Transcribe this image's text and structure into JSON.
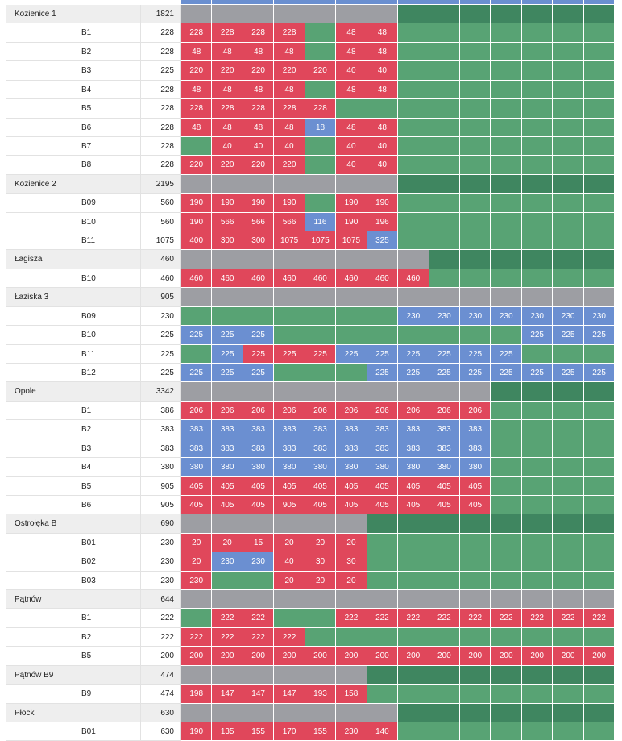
{
  "rows": [
    {
      "name": "Kozienice 1",
      "value": 1821,
      "colors": "SSSSSSSDDDDDDD"
    },
    {
      "unit": "B1",
      "value": 228,
      "colors": "RRRRGRRGGGGGGG",
      "cells": [
        228,
        228,
        228,
        228,
        null,
        48,
        48
      ]
    },
    {
      "unit": "B2",
      "value": 228,
      "colors": "RRRRGRRGGGGGGG",
      "cells": [
        48,
        48,
        48,
        48,
        null,
        48,
        48
      ]
    },
    {
      "unit": "B3",
      "value": 225,
      "colors": "RRRRRRRGGGGGGG",
      "cells": [
        220,
        220,
        220,
        220,
        220,
        40,
        40
      ]
    },
    {
      "unit": "B4",
      "value": 228,
      "colors": "RRRRGRRGGGGGGG",
      "cells": [
        48,
        48,
        48,
        48,
        null,
        48,
        48
      ]
    },
    {
      "unit": "B5",
      "value": 228,
      "colors": "RRRRRGGGGGGGGG",
      "cells": [
        228,
        228,
        228,
        228,
        228
      ]
    },
    {
      "unit": "B6",
      "value": 228,
      "colors": "RRRRBRRGGGGGGG",
      "cells": [
        48,
        48,
        48,
        48,
        18,
        48,
        48
      ]
    },
    {
      "unit": "B7",
      "value": 228,
      "colors": "GRRRGRRGGGGGGG",
      "cells": [
        null,
        40,
        40,
        40,
        null,
        40,
        40
      ]
    },
    {
      "unit": "B8",
      "value": 228,
      "colors": "RRRRGRRGGGGGGG",
      "cells": [
        220,
        220,
        220,
        220,
        null,
        40,
        40
      ]
    },
    {
      "name": "Kozienice 2",
      "value": 2195,
      "colors": "SSSSSSSDDDDDDD"
    },
    {
      "unit": "B09",
      "value": 560,
      "colors": "RRRRGRRGGGGGGG",
      "cells": [
        190,
        190,
        190,
        190,
        null,
        190,
        190
      ]
    },
    {
      "unit": "B10",
      "value": 560,
      "colors": "RRRRBRRGGGGGGG",
      "cells": [
        190,
        566,
        566,
        566,
        116,
        190,
        196
      ]
    },
    {
      "unit": "B11",
      "value": 1075,
      "colors": "RRRRRRBGGGGGGG",
      "cells": [
        400,
        300,
        300,
        1075,
        1075,
        1075,
        325
      ]
    },
    {
      "name": "Łagisza",
      "value": 460,
      "colors": "SSSSSSSSDDDDDD"
    },
    {
      "unit": "B10",
      "value": 460,
      "colors": "RRRRRRRRGGGGGG",
      "cells": [
        460,
        460,
        460,
        460,
        460,
        460,
        460,
        460
      ]
    },
    {
      "name": "Łaziska 3",
      "value": 905,
      "colors": "SSSSSSSSSSSSSS"
    },
    {
      "unit": "B09",
      "value": 230,
      "colors": "GGGGGGGBBBBBBB",
      "cells": [
        null,
        null,
        null,
        null,
        null,
        null,
        null,
        230,
        230,
        230,
        230,
        230,
        230,
        230
      ]
    },
    {
      "unit": "B10",
      "value": 225,
      "colors": "BBBGGGGGGGGBBB",
      "cells": [
        225,
        225,
        225,
        null,
        null,
        null,
        null,
        null,
        null,
        null,
        null,
        225,
        225,
        225
      ]
    },
    {
      "unit": "B11",
      "value": 225,
      "colors": "GBRRRBBBBBBGGG",
      "cells": [
        null,
        225,
        225,
        225,
        225,
        225,
        225,
        225,
        225,
        225,
        225
      ]
    },
    {
      "unit": "B12",
      "value": 225,
      "colors": "BBBGGGBBBBBBBB",
      "cells": [
        225,
        225,
        225,
        null,
        null,
        null,
        225,
        225,
        225,
        225,
        225,
        225,
        225,
        225
      ]
    },
    {
      "name": "Opole",
      "value": 3342,
      "colors": "SSSSSSSSSSDDDD"
    },
    {
      "unit": "B1",
      "value": 386,
      "colors": "RRRRRRRRRRGGGG",
      "cells": [
        206,
        206,
        206,
        206,
        206,
        206,
        206,
        206,
        206,
        206
      ]
    },
    {
      "unit": "B2",
      "value": 383,
      "colors": "BBBBBBBBBBGGGG",
      "cells": [
        383,
        383,
        383,
        383,
        383,
        383,
        383,
        383,
        383,
        383
      ]
    },
    {
      "unit": "B3",
      "value": 383,
      "colors": "BBBBBBBBBBGGGG",
      "cells": [
        383,
        383,
        383,
        383,
        383,
        383,
        383,
        383,
        383,
        383
      ]
    },
    {
      "unit": "B4",
      "value": 380,
      "colors": "BBBBBBBBBBGGGG",
      "cells": [
        380,
        380,
        380,
        380,
        380,
        380,
        380,
        380,
        380,
        380
      ]
    },
    {
      "unit": "B5",
      "value": 905,
      "colors": "RRRRRRRRRRGGGG",
      "cells": [
        405,
        405,
        405,
        405,
        405,
        405,
        405,
        405,
        405,
        405
      ]
    },
    {
      "unit": "B6",
      "value": 905,
      "colors": "RRRRRRRRRRGGGG",
      "cells": [
        405,
        405,
        405,
        905,
        405,
        405,
        405,
        405,
        405,
        405
      ]
    },
    {
      "name": "Ostrołęka B",
      "value": 690,
      "colors": "SSSSSSDDDDDDDD"
    },
    {
      "unit": "B01",
      "value": 230,
      "colors": "RRRRRRGGGGGGGG",
      "cells": [
        20,
        20,
        15,
        20,
        20,
        20
      ]
    },
    {
      "unit": "B02",
      "value": 230,
      "colors": "RBBRRRGGGGGGGG",
      "cells": [
        20,
        230,
        230,
        40,
        30,
        30
      ]
    },
    {
      "unit": "B03",
      "value": 230,
      "colors": "RGGRRRGGGGGGGG",
      "cells": [
        230,
        null,
        null,
        20,
        20,
        20
      ]
    },
    {
      "name": "Pątnów",
      "value": 644,
      "colors": "SSSSSSSSSSSSSS"
    },
    {
      "unit": "B1",
      "value": 222,
      "colors": "GRRGGRRRRRRRRR",
      "cells": [
        null,
        222,
        222,
        null,
        null,
        222,
        222,
        222,
        222,
        222,
        222,
        222,
        222,
        222
      ]
    },
    {
      "unit": "B2",
      "value": 222,
      "colors": "RRRRGGGGGGGGGG",
      "cells": [
        222,
        222,
        222,
        222
      ]
    },
    {
      "unit": "B5",
      "value": 200,
      "colors": "RRRRRRRRRRRRRR",
      "cells": [
        200,
        200,
        200,
        200,
        200,
        200,
        200,
        200,
        200,
        200,
        200,
        200,
        200,
        200
      ]
    },
    {
      "name": "Pątnów B9",
      "value": 474,
      "colors": "SSSSSSDDDDDDDD"
    },
    {
      "unit": "B9",
      "value": 474,
      "colors": "RRRRRRGGGGGGGG",
      "cells": [
        198,
        147,
        147,
        147,
        193,
        158
      ]
    },
    {
      "name": "Płock",
      "value": 630,
      "colors": "SSSSSSSDDDDDDD"
    },
    {
      "unit": "B01",
      "value": 630,
      "colors": "RRRRRRRGGGGGGG",
      "cells": [
        190,
        135,
        155,
        170,
        155,
        230,
        140
      ]
    }
  ]
}
